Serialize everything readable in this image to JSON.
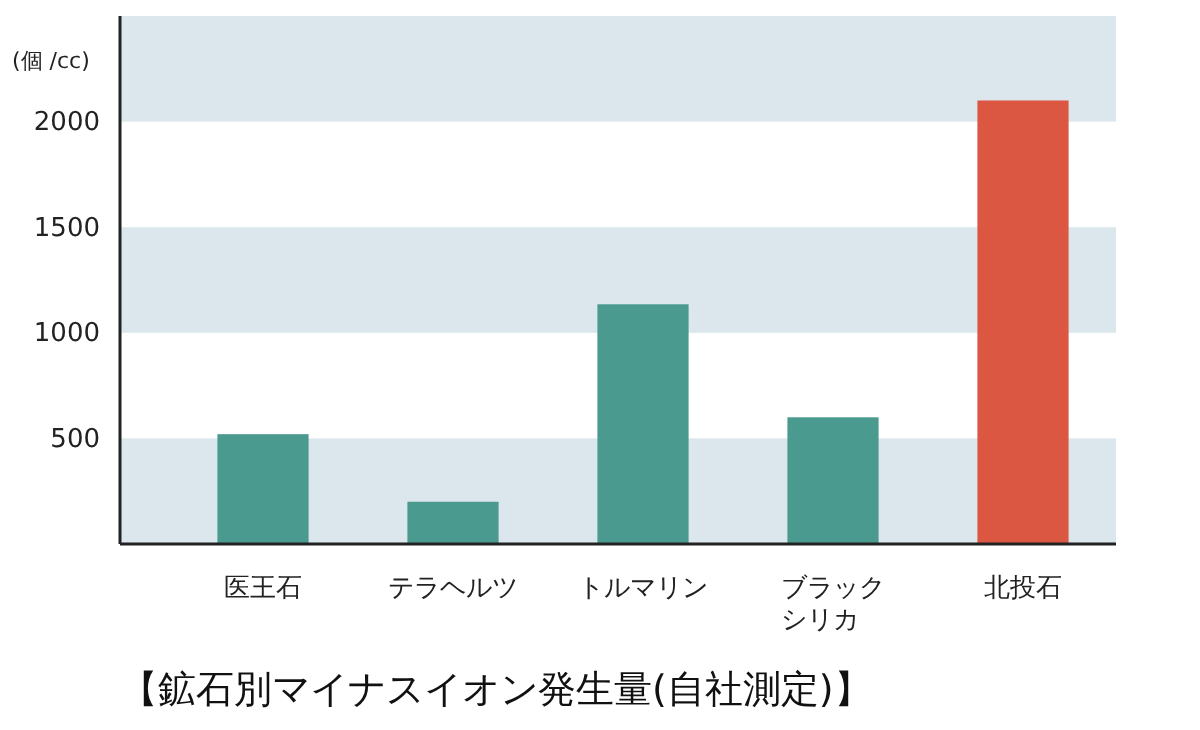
{
  "chart_data": {
    "type": "bar",
    "title": "【鉱石別マイナスイオン発生量(自社測定)】",
    "ylabel": "(個 /cc)",
    "categories": [
      "医王石",
      "テラヘルツ",
      "トルマリン",
      "ブラックシリカ",
      "北投石"
    ],
    "values": [
      520,
      200,
      1135,
      600,
      2100
    ],
    "colors": [
      "#4a9a8f",
      "#4a9a8f",
      "#4a9a8f",
      "#4a9a8f",
      "#db5742"
    ],
    "ylim": [
      0,
      2500
    ],
    "yticks": [
      500,
      1000,
      1500,
      2000
    ],
    "bands": [
      {
        "axis": "y",
        "from": 0,
        "to": 500,
        "color": "#dbe7ec"
      },
      {
        "axis": "y",
        "from": 1000,
        "to": 1500,
        "color": "#dbe7ec"
      },
      {
        "axis": "y",
        "from": 2000,
        "to": 2500,
        "color": "#dbe7ec"
      }
    ],
    "grid": false
  }
}
